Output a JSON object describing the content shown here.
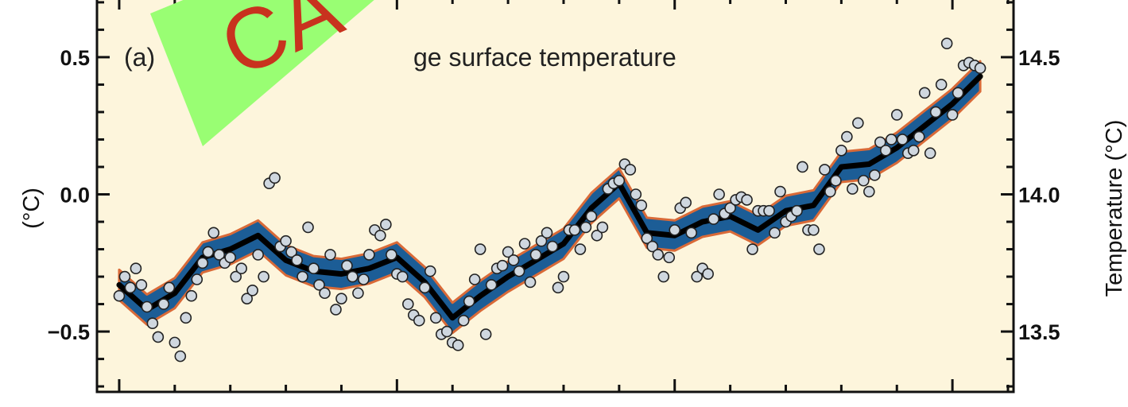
{
  "chart_data": {
    "type": "line",
    "panel_label": "(a)",
    "title_fragment": "ge surface temperature",
    "left_ylabel": "(°C)",
    "right_ylabel": "Temperature (°C)",
    "left_yticks": [
      {
        "value": 0.5,
        "label": "0.5"
      },
      {
        "value": 0.0,
        "label": "0.0"
      },
      {
        "value": -0.5,
        "label": "−0.5"
      }
    ],
    "right_yticks": [
      {
        "value": 14.5,
        "label": "14.5"
      },
      {
        "value": 14.0,
        "label": "14.0"
      },
      {
        "value": 13.5,
        "label": "13.5"
      }
    ],
    "ylim": [
      -0.72,
      0.72
    ],
    "xlim": [
      1846,
      2011
    ],
    "x_major_ticks": [
      1850,
      1900,
      1950,
      2000
    ],
    "x_minor_step": 10,
    "grid": false,
    "background_color": "#fdf5dc",
    "band_color": "#1c5d96",
    "band_edge_color": "#d96a38",
    "smooth_line_color": "#000000",
    "point_fill_color": "#cfd7df",
    "smoothed": {
      "name": "",
      "x": [
        1850,
        1855,
        1860,
        1865,
        1870,
        1875,
        1880,
        1885,
        1890,
        1895,
        1900,
        1905,
        1910,
        1915,
        1920,
        1925,
        1930,
        1935,
        1940,
        1945,
        1950,
        1955,
        1960,
        1965,
        1970,
        1975,
        1980,
        1985,
        1990,
        1995,
        2000,
        2005
      ],
      "y": [
        -0.33,
        -0.42,
        -0.36,
        -0.23,
        -0.2,
        -0.15,
        -0.24,
        -0.28,
        -0.29,
        -0.27,
        -0.23,
        -0.32,
        -0.45,
        -0.37,
        -0.3,
        -0.24,
        -0.18,
        -0.05,
        0.04,
        -0.14,
        -0.15,
        -0.1,
        -0.08,
        -0.13,
        -0.06,
        -0.04,
        0.1,
        0.11,
        0.17,
        0.25,
        0.33,
        0.43
      ]
    },
    "band_halfwidth": 0.055,
    "annual": {
      "x": [
        1850,
        1851,
        1852,
        1853,
        1854,
        1855,
        1856,
        1857,
        1858,
        1859,
        1860,
        1861,
        1862,
        1863,
        1864,
        1865,
        1866,
        1867,
        1868,
        1869,
        1870,
        1871,
        1872,
        1873,
        1874,
        1875,
        1876,
        1877,
        1878,
        1879,
        1880,
        1881,
        1882,
        1883,
        1884,
        1885,
        1886,
        1887,
        1888,
        1889,
        1890,
        1891,
        1892,
        1893,
        1894,
        1895,
        1896,
        1897,
        1898,
        1899,
        1900,
        1901,
        1902,
        1903,
        1904,
        1905,
        1906,
        1907,
        1908,
        1909,
        1910,
        1911,
        1912,
        1913,
        1914,
        1915,
        1916,
        1917,
        1918,
        1919,
        1920,
        1921,
        1922,
        1923,
        1924,
        1925,
        1926,
        1927,
        1928,
        1929,
        1930,
        1931,
        1932,
        1933,
        1934,
        1935,
        1936,
        1937,
        1938,
        1939,
        1940,
        1941,
        1942,
        1943,
        1944,
        1945,
        1946,
        1947,
        1948,
        1949,
        1950,
        1951,
        1952,
        1953,
        1954,
        1955,
        1956,
        1957,
        1958,
        1959,
        1960,
        1961,
        1962,
        1963,
        1964,
        1965,
        1966,
        1967,
        1968,
        1969,
        1970,
        1971,
        1972,
        1973,
        1974,
        1975,
        1976,
        1977,
        1978,
        1979,
        1980,
        1981,
        1982,
        1983,
        1984,
        1985,
        1986,
        1987,
        1988,
        1989,
        1990,
        1991,
        1992,
        1993,
        1994,
        1995,
        1996,
        1997,
        1998,
        1999,
        2000,
        2001,
        2002,
        2003,
        2004,
        2005
      ],
      "y": [
        -0.37,
        -0.3,
        -0.34,
        -0.27,
        -0.33,
        -0.41,
        -0.47,
        -0.52,
        -0.4,
        -0.34,
        -0.54,
        -0.59,
        -0.45,
        -0.37,
        -0.31,
        -0.25,
        -0.21,
        -0.14,
        -0.22,
        -0.25,
        -0.23,
        -0.3,
        -0.27,
        -0.38,
        -0.35,
        -0.22,
        -0.3,
        0.04,
        0.06,
        -0.19,
        -0.17,
        -0.21,
        -0.24,
        -0.3,
        -0.12,
        -0.27,
        -0.33,
        -0.36,
        -0.22,
        -0.42,
        -0.38,
        -0.26,
        -0.3,
        -0.36,
        -0.31,
        -0.22,
        -0.13,
        -0.15,
        -0.11,
        -0.22,
        -0.29,
        -0.3,
        -0.4,
        -0.44,
        -0.46,
        -0.34,
        -0.28,
        -0.45,
        -0.51,
        -0.5,
        -0.54,
        -0.55,
        -0.46,
        -0.39,
        -0.31,
        -0.2,
        -0.51,
        -0.33,
        -0.27,
        -0.26,
        -0.21,
        -0.24,
        -0.28,
        -0.18,
        -0.32,
        -0.22,
        -0.17,
        -0.14,
        -0.19,
        -0.34,
        -0.3,
        -0.13,
        -0.13,
        -0.2,
        -0.12,
        -0.08,
        -0.15,
        -0.12,
        0.02,
        0.04,
        0.05,
        0.11,
        0.09,
        0.0,
        -0.04,
        -0.16,
        -0.19,
        -0.22,
        -0.3,
        -0.23,
        -0.13,
        -0.05,
        -0.03,
        -0.14,
        -0.3,
        -0.27,
        -0.29,
        -0.09,
        0.0,
        -0.07,
        -0.05,
        -0.02,
        -0.01,
        -0.02,
        -0.2,
        -0.06,
        -0.06,
        -0.06,
        -0.14,
        0.01,
        -0.1,
        -0.08,
        -0.06,
        0.1,
        -0.13,
        -0.13,
        -0.2,
        0.09,
        0.01,
        0.05,
        0.16,
        0.21,
        0.02,
        0.26,
        0.05,
        0.01,
        0.07,
        0.19,
        0.16,
        0.2,
        0.29,
        0.2,
        0.15,
        0.16,
        0.21,
        0.37,
        0.15,
        0.3,
        0.4,
        0.55,
        0.29,
        0.37,
        0.47,
        0.48,
        0.47,
        0.46
      ]
    }
  },
  "overlay": {
    "stamp_text": "CA",
    "stamp_color": "#c8321e",
    "banner_color": "#99fe73"
  }
}
